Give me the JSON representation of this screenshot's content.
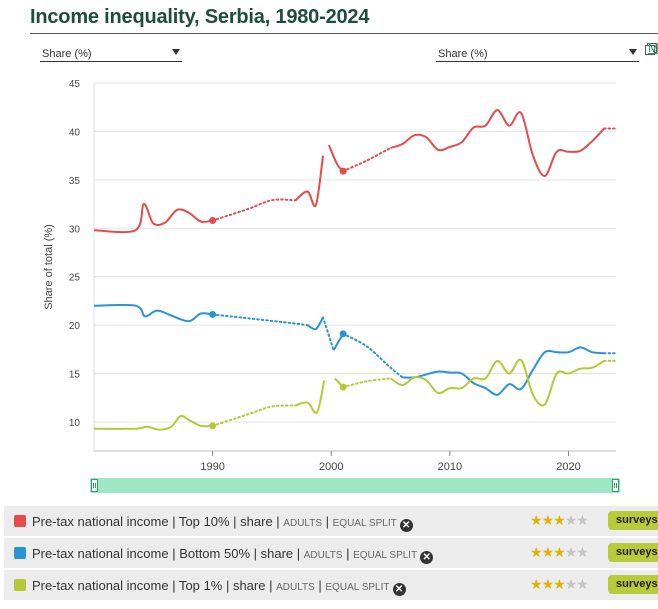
{
  "title": "Income inequality, Serbia, 1980-2024",
  "selector_left": "Share (%)",
  "selector_right": "Share (%)",
  "more_link": "M",
  "chart_data": {
    "type": "line",
    "title": "Income inequality, Serbia, 1980-2024",
    "xlabel": "",
    "ylabel": "Share of total (%)",
    "xlim": [
      1980,
      2024
    ],
    "ylim": [
      7,
      45
    ],
    "yticks": [
      10,
      15,
      20,
      25,
      30,
      35,
      40,
      45
    ],
    "xticks": [
      1990,
      2000,
      2010,
      2020
    ],
    "series": [
      {
        "name": "Top 10%",
        "color": "#e54b4b",
        "anchor_points": [
          [
            1990,
            30.8
          ],
          [
            2001,
            35.9
          ]
        ],
        "solid_segments": [
          [
            [
              1980,
              29.8
            ],
            [
              1983.5,
              29.8
            ],
            [
              1984.2,
              32.5
            ],
            [
              1985,
              30.5
            ],
            [
              1986,
              30.6
            ],
            [
              1987,
              31.9
            ],
            [
              1988,
              31.6
            ],
            [
              1989,
              30.7
            ],
            [
              1990,
              30.8
            ]
          ],
          [
            [
              1997,
              32.9
            ],
            [
              1998,
              33.8
            ],
            [
              1998.7,
              32.4
            ],
            [
              1999.3,
              37.5
            ]
          ],
          [
            [
              1999.8,
              38.6
            ],
            [
              2000.5,
              36.6
            ],
            [
              2001,
              35.9
            ]
          ],
          [
            [
              2005,
              38.3
            ],
            [
              2006,
              38.7
            ],
            [
              2007,
              39.6
            ],
            [
              2008,
              39.4
            ],
            [
              2009,
              38.1
            ],
            [
              2010,
              38.4
            ],
            [
              2011,
              38.9
            ],
            [
              2012,
              40.4
            ],
            [
              2013,
              40.6
            ],
            [
              2014,
              42.2
            ],
            [
              2015,
              40.6
            ],
            [
              2016,
              41.9
            ],
            [
              2017,
              37.5
            ],
            [
              2018,
              35.4
            ],
            [
              2019,
              37.9
            ],
            [
              2020,
              37.9
            ],
            [
              2021,
              38.0
            ],
            [
              2022,
              39.0
            ],
            [
              2023,
              40.3
            ]
          ]
        ],
        "dotted_segments": [
          [
            [
              1990,
              30.8
            ],
            [
              1993,
              32.0
            ],
            [
              1995,
              32.9
            ],
            [
              1997,
              32.9
            ]
          ],
          [
            [
              2001,
              35.9
            ],
            [
              2003,
              37.0
            ],
            [
              2005,
              38.3
            ]
          ],
          [
            [
              2023,
              40.3
            ],
            [
              2024,
              40.3
            ]
          ]
        ]
      },
      {
        "name": "Bottom 50%",
        "color": "#2a93d5",
        "anchor_points": [
          [
            1990,
            21.1
          ],
          [
            2001,
            19.1
          ]
        ],
        "solid_segments": [
          [
            [
              1980,
              22.0
            ],
            [
              1983.5,
              22.0
            ],
            [
              1984.3,
              20.9
            ],
            [
              1985.3,
              21.5
            ],
            [
              1986.5,
              21.0
            ],
            [
              1988,
              20.4
            ],
            [
              1989,
              21.2
            ],
            [
              1990,
              21.1
            ]
          ],
          [
            [
              1998,
              20.0
            ],
            [
              1998.7,
              19.6
            ],
            [
              1999.3,
              20.8
            ]
          ],
          [
            [
              2000.2,
              17.4
            ],
            [
              2000.7,
              18.5
            ],
            [
              2001,
              19.1
            ]
          ],
          [
            [
              2006,
              14.6
            ],
            [
              2007,
              14.6
            ],
            [
              2008,
              14.9
            ],
            [
              2009,
              15.2
            ],
            [
              2010,
              15.1
            ],
            [
              2011,
              15.0
            ],
            [
              2012,
              14.0
            ],
            [
              2013,
              13.5
            ],
            [
              2014,
              12.8
            ],
            [
              2015,
              13.9
            ],
            [
              2016,
              13.4
            ],
            [
              2017,
              15.4
            ],
            [
              2018,
              17.2
            ],
            [
              2019,
              17.2
            ],
            [
              2020,
              17.2
            ],
            [
              2021,
              17.7
            ],
            [
              2022,
              17.2
            ],
            [
              2023,
              17.1
            ]
          ]
        ],
        "dotted_segments": [
          [
            [
              1990,
              21.1
            ],
            [
              1993,
              20.7
            ],
            [
              1996,
              20.3
            ],
            [
              1998,
              20.0
            ]
          ],
          [
            [
              1999.3,
              20.8
            ],
            [
              2000.2,
              17.4
            ]
          ],
          [
            [
              2001,
              19.1
            ],
            [
              2003,
              17.8
            ],
            [
              2005,
              15.6
            ],
            [
              2006,
              14.6
            ]
          ],
          [
            [
              2023,
              17.1
            ],
            [
              2024,
              17.1
            ]
          ]
        ]
      },
      {
        "name": "Top 1%",
        "color": "#b5c938",
        "anchor_points": [
          [
            1990,
            9.6
          ],
          [
            2001,
            13.6
          ]
        ],
        "solid_segments": [
          [
            [
              1980,
              9.3
            ],
            [
              1983.5,
              9.3
            ],
            [
              1984.5,
              9.5
            ],
            [
              1985.5,
              9.2
            ],
            [
              1986.5,
              9.5
            ],
            [
              1987.3,
              10.6
            ],
            [
              1988,
              10.2
            ],
            [
              1989,
              9.6
            ],
            [
              1990,
              9.6
            ]
          ],
          [
            [
              1997,
              11.7
            ],
            [
              1998,
              12.0
            ],
            [
              1998.8,
              11.0
            ],
            [
              1999.4,
              14.3
            ]
          ],
          [
            [
              2000.3,
              14.5
            ],
            [
              2001,
              13.6
            ]
          ],
          [
            [
              2005,
              14.5
            ],
            [
              2006,
              13.8
            ],
            [
              2007,
              14.6
            ],
            [
              2008,
              14.3
            ],
            [
              2009,
              13.0
            ],
            [
              2010,
              13.5
            ],
            [
              2011,
              13.5
            ],
            [
              2012,
              14.5
            ],
            [
              2013,
              14.5
            ],
            [
              2014,
              16.3
            ],
            [
              2015,
              15.0
            ],
            [
              2016,
              16.4
            ],
            [
              2017,
              12.8
            ],
            [
              2018,
              11.8
            ],
            [
              2019,
              15.0
            ],
            [
              2020,
              15.0
            ],
            [
              2021,
              15.5
            ],
            [
              2022,
              15.6
            ],
            [
              2023,
              16.3
            ]
          ]
        ],
        "dotted_segments": [
          [
            [
              1990,
              9.6
            ],
            [
              1993,
              10.8
            ],
            [
              1995,
              11.6
            ],
            [
              1997,
              11.7
            ]
          ],
          [
            [
              2001,
              13.6
            ],
            [
              2003,
              14.2
            ],
            [
              2005,
              14.5
            ]
          ],
          [
            [
              2023,
              16.3
            ],
            [
              2024,
              16.3
            ]
          ]
        ]
      }
    ]
  },
  "legend": [
    {
      "swatch": "#e54b4b",
      "label_main": "Pre-tax national income",
      "label_group": "Top 10%",
      "label_unit": "share",
      "label_pop": "ADULTS",
      "label_method": "EQUAL SPLIT",
      "stars": 3,
      "tag": "surveys a"
    },
    {
      "swatch": "#2a93d5",
      "label_main": "Pre-tax national income",
      "label_group": "Bottom 50%",
      "label_unit": "share",
      "label_pop": "ADULTS",
      "label_method": "EQUAL SPLIT",
      "stars": 3,
      "tag": "surveys a"
    },
    {
      "swatch": "#b5c938",
      "label_main": "Pre-tax national income",
      "label_group": "Top 1%",
      "label_unit": "share",
      "label_pop": "ADULTS",
      "label_method": "EQUAL SPLIT",
      "stars": 3,
      "tag": "surveys a"
    }
  ]
}
